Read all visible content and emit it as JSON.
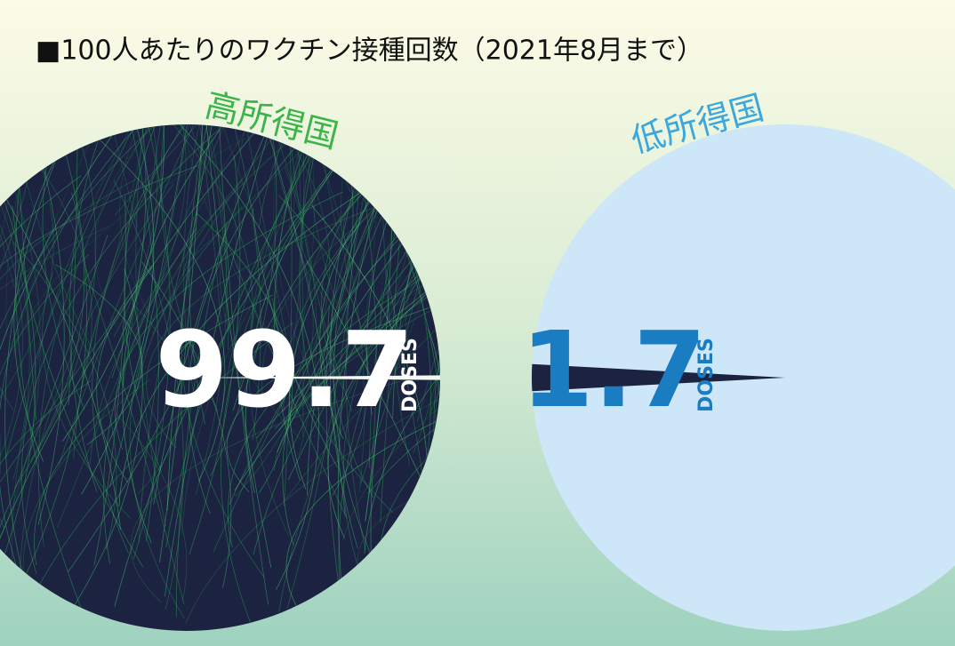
{
  "title": "■100人あたりのワクチン接種回数（2021年8月まで）",
  "chart_data": [
    {
      "type": "pie",
      "label": "高所得国",
      "value": 99.7,
      "unit": "DOSES",
      "ylim": [
        0,
        100
      ],
      "color": "#1b2340",
      "base_color": "#f4f7ee",
      "text_color": "#ffffff",
      "label_color": "#3bb54a"
    },
    {
      "type": "pie",
      "label": "低所得国",
      "value": 1.7,
      "unit": "DOSES",
      "ylim": [
        0,
        100
      ],
      "color": "#1b2340",
      "base_color": "#cde7f8",
      "text_color": "#1a7cc1",
      "label_color": "#3aa8de"
    }
  ]
}
